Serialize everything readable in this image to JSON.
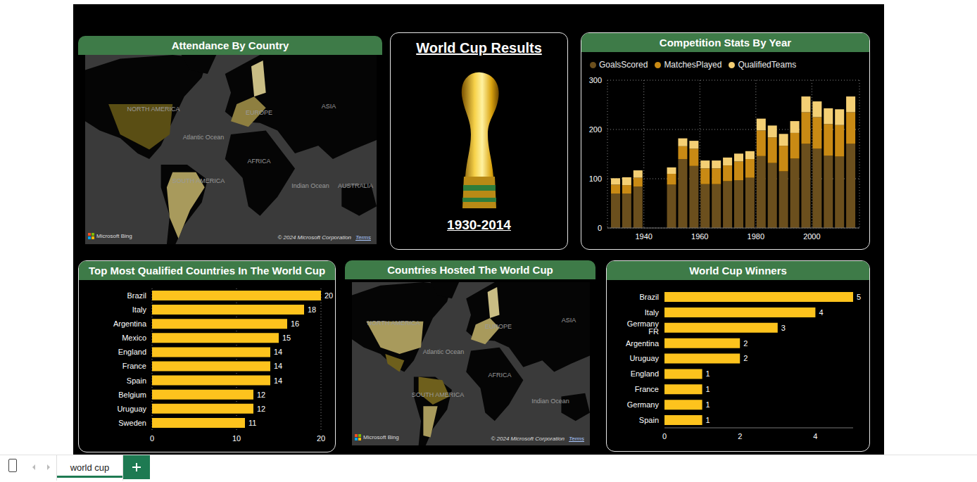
{
  "sheet_tab": "world cup",
  "title_card": {
    "title": "World Cup Results",
    "subtitle": "1930-2014"
  },
  "maps": [
    {
      "title": "Attendance By Country",
      "labels": [
        "NORTH AMERICA",
        "EUROPE",
        "ASIA",
        "Atlantic Ocean",
        "AFRICA",
        "SOUTH AMERICA",
        "Indian Ocean",
        "AUSTRALIA"
      ],
      "provider": "Microsoft Bing",
      "copyright": "© 2024 Microsoft Corporation",
      "link": "Terms"
    },
    {
      "title": "Countries Hosted The World Cup",
      "labels": [
        "NORTH AMERICA",
        "EUROPE",
        "ASIA",
        "Atlantic Ocean",
        "AFRICA",
        "SOUTH AMERICA",
        "Indian Ocean"
      ],
      "provider": "Microsoft Bing",
      "copyright": "© 2024 Microsoft Corporation",
      "link": "Terms"
    }
  ],
  "chart_data": [
    {
      "type": "bar",
      "title": "Competition Stats By Year",
      "stacked": true,
      "x": [
        1930,
        1934,
        1938,
        1950,
        1954,
        1958,
        1962,
        1966,
        1970,
        1974,
        1978,
        1982,
        1986,
        1990,
        1994,
        1998,
        2002,
        2006,
        2010,
        2014
      ],
      "series": [
        {
          "name": "GoalsScored",
          "color": "#6b4f1d",
          "values": [
            70,
            70,
            84,
            88,
            140,
            126,
            89,
            89,
            95,
            97,
            102,
            146,
            132,
            115,
            141,
            171,
            161,
            147,
            145,
            171
          ]
        },
        {
          "name": "MatchesPlayed",
          "color": "#c98a14",
          "values": [
            18,
            17,
            18,
            22,
            26,
            35,
            32,
            32,
            32,
            38,
            38,
            52,
            52,
            52,
            52,
            64,
            64,
            64,
            64,
            64
          ]
        },
        {
          "name": "QualifiedTeams",
          "color": "#f4cf74",
          "values": [
            13,
            16,
            15,
            13,
            16,
            16,
            16,
            16,
            16,
            16,
            16,
            24,
            24,
            24,
            24,
            32,
            32,
            32,
            32,
            32
          ]
        }
      ],
      "xlim": [
        1927,
        2017
      ],
      "xticks": [
        1940,
        1960,
        1980,
        2000
      ],
      "ylim": [
        0,
        300
      ],
      "yticks": [
        0,
        100,
        200,
        300
      ],
      "grid": true,
      "legend": "top left"
    },
    {
      "type": "bar",
      "title": "Top Most Qualified Countries In The World Cup",
      "orientation": "horizontal",
      "categories": [
        "Brazil",
        "Italy",
        "Argentina",
        "Mexico",
        "England",
        "France",
        "Spain",
        "Belgium",
        "Uruguay",
        "Sweden"
      ],
      "values": [
        20,
        18,
        16,
        15,
        14,
        14,
        14,
        12,
        12,
        11
      ],
      "color": "#fdc31d",
      "xlim": [
        0,
        20
      ],
      "xticks": [
        0,
        10,
        20
      ],
      "grid": true,
      "data_labels": true
    },
    {
      "type": "bar",
      "title": "World Cup Winners",
      "orientation": "horizontal",
      "categories": [
        "Brazil",
        "Italy",
        "Germany FR",
        "Argentina",
        "Uruguay",
        "England",
        "France",
        "Germany",
        "Spain"
      ],
      "values": [
        5,
        4,
        3,
        2,
        2,
        1,
        1,
        1,
        1
      ],
      "color": "#fdc31d",
      "xlim": [
        0,
        5
      ],
      "xticks": [
        0,
        2,
        4
      ],
      "grid": false,
      "data_labels": true
    }
  ]
}
